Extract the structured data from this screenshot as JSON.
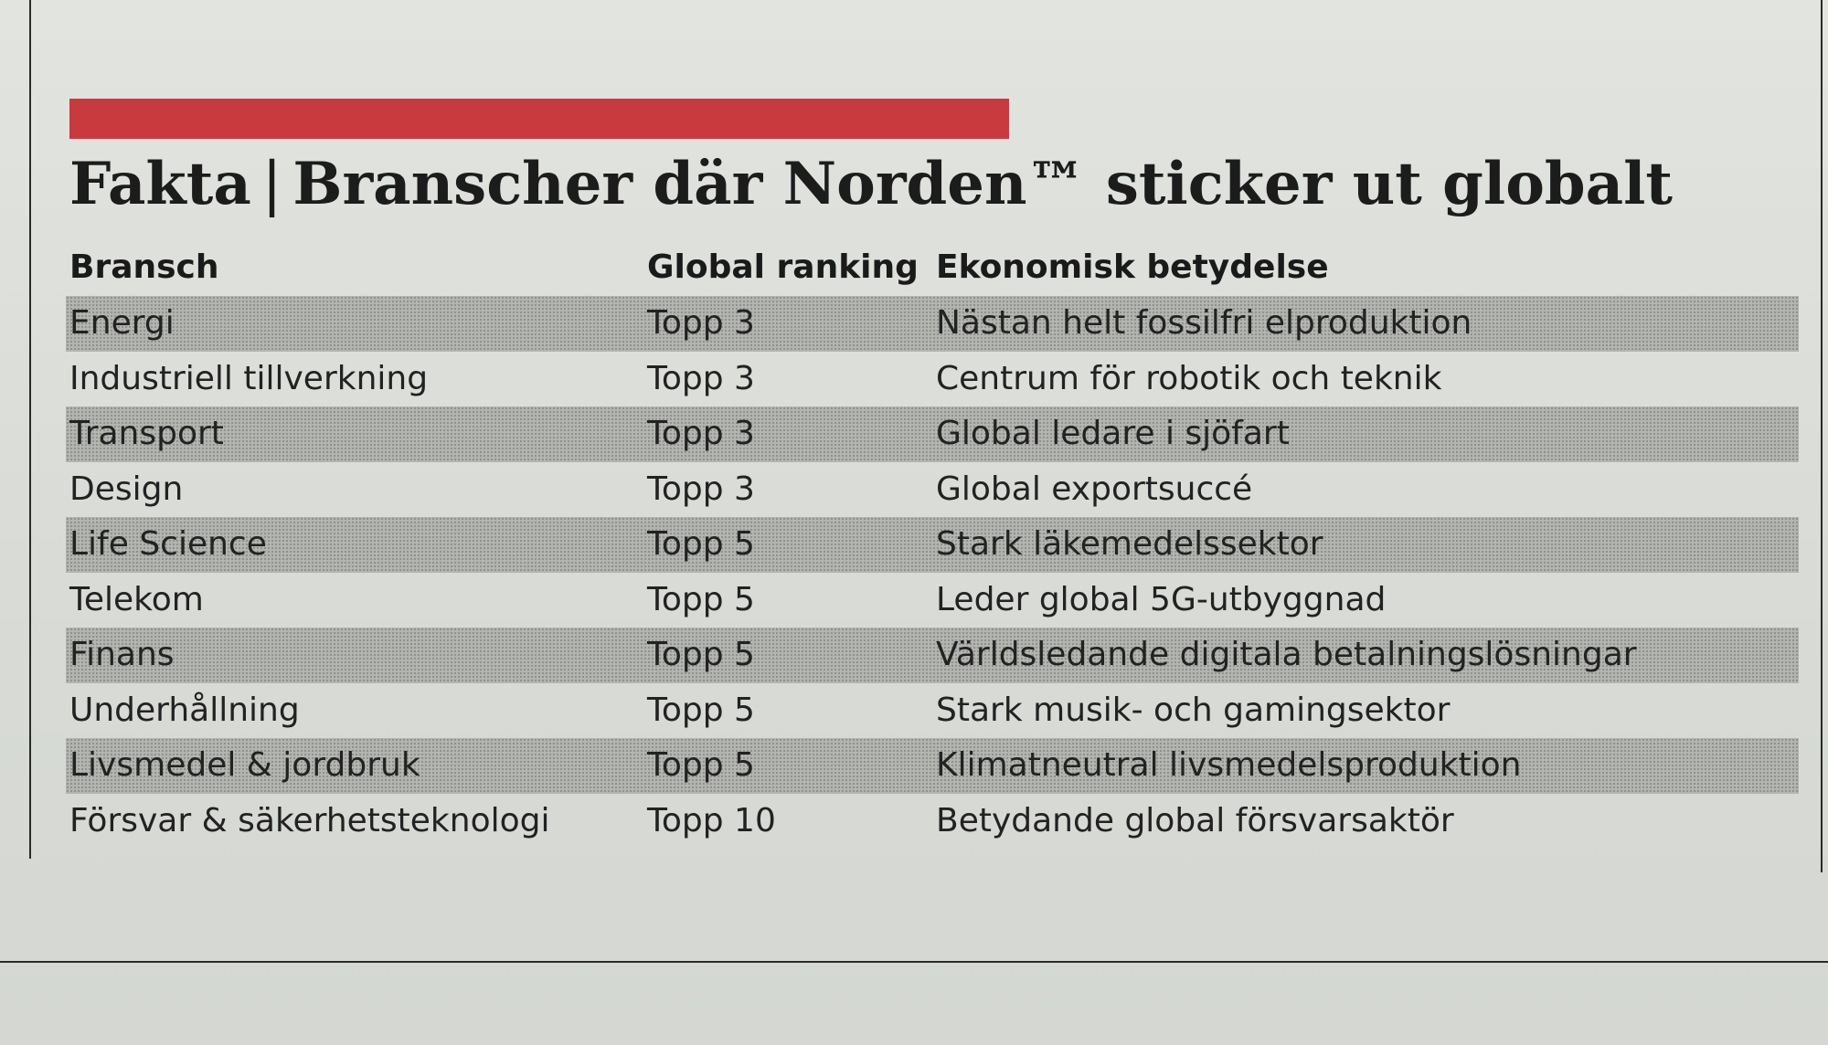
{
  "headline": {
    "label": "Fakta",
    "separator": "|",
    "title": "Branscher där Norden™ sticker ut globalt"
  },
  "columns": {
    "industry": "Bransch",
    "ranking": "Global ranking",
    "significance": "Ekonomisk betydelse"
  },
  "rows": [
    {
      "industry": "Energi",
      "ranking": "Topp 3",
      "significance": "Nästan helt fossilfri elproduktion"
    },
    {
      "industry": "Industriell tillverkning",
      "ranking": "Topp 3",
      "significance": "Centrum för robotik och teknik"
    },
    {
      "industry": "Transport",
      "ranking": "Topp 3",
      "significance": "Global ledare i sjöfart"
    },
    {
      "industry": "Design",
      "ranking": "Topp 3",
      "significance": "Global exportsuccé"
    },
    {
      "industry": "Life Science",
      "ranking": "Topp 5",
      "significance": "Stark läkemedelssektor"
    },
    {
      "industry": "Telekom",
      "ranking": "Topp 5",
      "significance": "Leder global 5G-utbyggnad"
    },
    {
      "industry": "Finans",
      "ranking": "Topp 5",
      "significance": "Världsledande digitala betalningslösningar"
    },
    {
      "industry": "Underhållning",
      "ranking": "Topp 5",
      "significance": "Stark musik- och gamingsektor"
    },
    {
      "industry": "Livsmedel & jordbruk",
      "ranking": "Topp 5",
      "significance": "Klimatneutral livsmedelsproduktion"
    },
    {
      "industry": "Försvar & säkerhetsteknologi",
      "ranking": "Topp 10",
      "significance": "Betydande global försvarsaktör"
    }
  ],
  "colors": {
    "accent": "#c93a3f",
    "text": "#1c1c1c",
    "shade": "#b4b6b2"
  }
}
